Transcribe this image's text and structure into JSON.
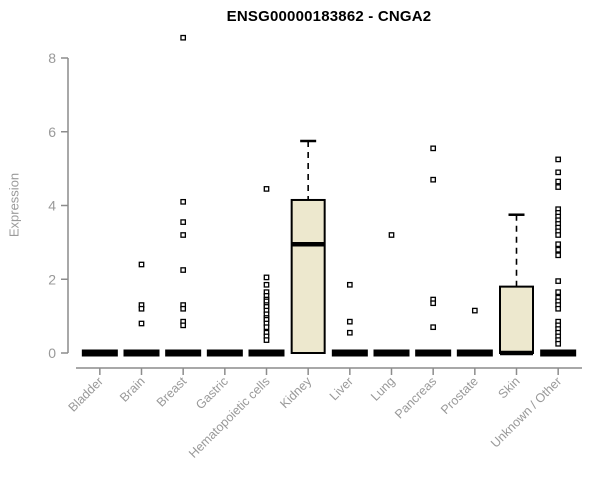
{
  "header": {
    "title": "ENSG00000183862 - CNGA2"
  },
  "colors": {
    "background": "#ffffff",
    "box_fill": "#EDE8CE",
    "box_stroke": "#000000",
    "median": "#000000",
    "collapsed_bar": "#000000",
    "outlier_fill": "#ffffff",
    "outlier_stroke": "#000000",
    "axis": "#8c8c8c",
    "tick_label": "#999999",
    "title_text": "#000000"
  },
  "chart_data": {
    "type": "boxplot",
    "title": "ENSG00000183862 - CNGA2",
    "xlabel": "",
    "ylabel": "Expression",
    "ylim": [
      0,
      8
    ],
    "yticks": [
      0,
      2,
      4,
      6,
      8
    ],
    "grid": false,
    "legend": "none",
    "categories": [
      "Bladder",
      "Brain",
      "Breast",
      "Gastric",
      "Hematopoietic cells",
      "Kidney",
      "Liver",
      "Lung",
      "Pancreas",
      "Prostate",
      "Skin",
      "Unknown / Other"
    ],
    "series": [
      {
        "name": "Bladder",
        "q1": 0,
        "median": 0,
        "q3": 0,
        "whisker_low": 0,
        "whisker_high": 0,
        "outliers": []
      },
      {
        "name": "Brain",
        "q1": 0,
        "median": 0,
        "q3": 0,
        "whisker_low": 0,
        "whisker_high": 0,
        "outliers": [
          2.4,
          1.3,
          1.2,
          0.8
        ]
      },
      {
        "name": "Breast",
        "q1": 0,
        "median": 0,
        "q3": 0,
        "whisker_low": 0,
        "whisker_high": 0,
        "outliers": [
          8.55,
          4.1,
          3.55,
          3.2,
          2.25,
          1.3,
          1.2,
          0.85,
          0.75
        ]
      },
      {
        "name": "Gastric",
        "q1": 0,
        "median": 0,
        "q3": 0,
        "whisker_low": 0,
        "whisker_high": 0,
        "outliers": []
      },
      {
        "name": "Hematopoietic cells",
        "q1": 0,
        "median": 0,
        "q3": 0,
        "whisker_low": 0,
        "whisker_high": 0,
        "outliers": [
          4.45,
          2.05,
          1.85,
          1.65,
          1.55,
          1.45,
          1.4,
          1.3,
          1.25,
          1.15,
          1.05,
          0.95,
          0.9,
          0.8,
          0.7,
          0.55,
          0.45,
          0.35
        ]
      },
      {
        "name": "Kidney",
        "q1": 0,
        "median": 2.95,
        "q3": 4.15,
        "whisker_low": 0,
        "whisker_high": 5.75,
        "outliers": []
      },
      {
        "name": "Liver",
        "q1": 0,
        "median": 0,
        "q3": 0,
        "whisker_low": 0,
        "whisker_high": 0,
        "outliers": [
          1.85,
          0.85,
          0.55
        ]
      },
      {
        "name": "Lung",
        "q1": 0,
        "median": 0,
        "q3": 0,
        "whisker_low": 0,
        "whisker_high": 0,
        "outliers": [
          3.2
        ]
      },
      {
        "name": "Pancreas",
        "q1": 0,
        "median": 0,
        "q3": 0,
        "whisker_low": 0,
        "whisker_high": 0,
        "outliers": [
          5.55,
          4.7,
          1.45,
          1.35,
          0.7
        ]
      },
      {
        "name": "Prostate",
        "q1": 0,
        "median": 0,
        "q3": 0,
        "whisker_low": 0,
        "whisker_high": 0,
        "outliers": [
          1.15
        ]
      },
      {
        "name": "Skin",
        "q1": 0,
        "median": 0,
        "q3": 1.8,
        "whisker_low": 0,
        "whisker_high": 3.75,
        "outliers": []
      },
      {
        "name": "Unknown / Other",
        "q1": 0,
        "median": 0,
        "q3": 0,
        "whisker_low": 0,
        "whisker_high": 0,
        "outliers": [
          5.25,
          4.9,
          4.65,
          4.5,
          3.9,
          3.8,
          3.7,
          3.6,
          3.5,
          3.4,
          3.3,
          3.2,
          2.95,
          2.8,
          2.65,
          1.95,
          1.65,
          1.5,
          1.4,
          1.3,
          1.2,
          0.85,
          0.75,
          0.65,
          0.55,
          0.45,
          0.35,
          0.25
        ]
      }
    ]
  }
}
